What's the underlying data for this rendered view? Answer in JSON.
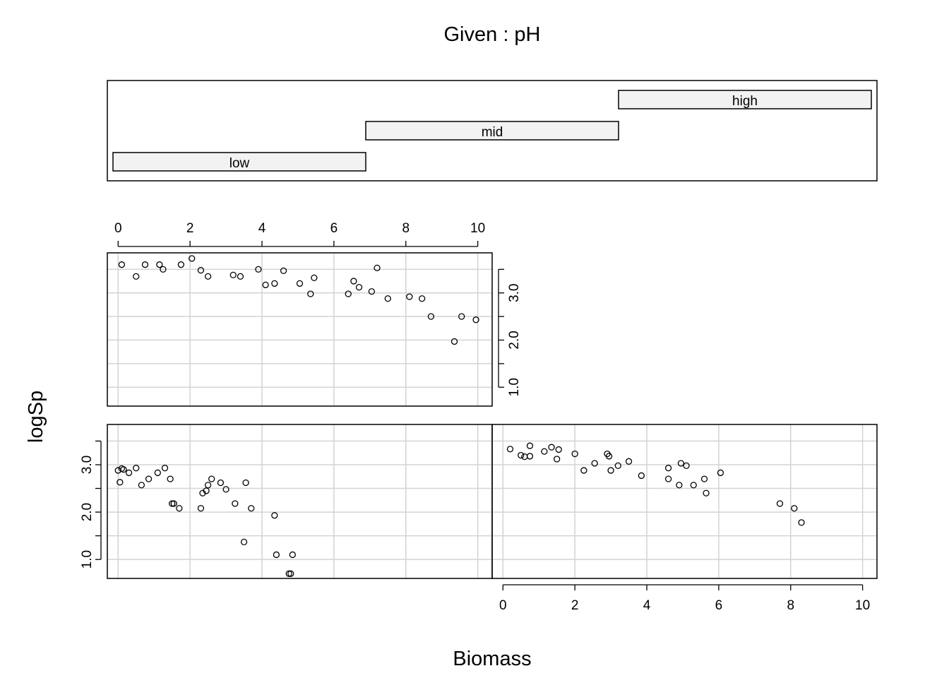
{
  "chart_data": {
    "type": "scatter",
    "title": "Given : pH",
    "xlabel": "Biomass",
    "ylabel": "logSp",
    "xlim": [
      -0.3,
      10.4
    ],
    "ylim": [
      0.6,
      3.85
    ],
    "x_ticks": [
      0,
      2,
      4,
      6,
      8,
      10
    ],
    "y_ticks": [
      1.0,
      1.5,
      2.0,
      2.5,
      3.0,
      3.5
    ],
    "y_tick_labels": [
      "1.0",
      "2.0",
      "3.0"
    ],
    "grid": true,
    "given": {
      "name": "pH",
      "levels": [
        {
          "label": "low",
          "range": [
            0,
            1
          ]
        },
        {
          "label": "mid",
          "range": [
            1,
            2
          ]
        },
        {
          "label": "high",
          "range": [
            2,
            3
          ]
        }
      ]
    },
    "panels": [
      {
        "level": "low",
        "points": [
          [
            0.0,
            2.88
          ],
          [
            0.05,
            2.63
          ],
          [
            0.1,
            2.92
          ],
          [
            0.15,
            2.9
          ],
          [
            0.3,
            2.83
          ],
          [
            0.5,
            2.93
          ],
          [
            0.65,
            2.57
          ],
          [
            0.85,
            2.7
          ],
          [
            1.1,
            2.83
          ],
          [
            1.3,
            2.93
          ],
          [
            1.45,
            2.7
          ],
          [
            1.5,
            2.18
          ],
          [
            1.55,
            2.18
          ],
          [
            1.7,
            2.08
          ],
          [
            2.3,
            2.08
          ],
          [
            2.35,
            2.4
          ],
          [
            2.45,
            2.45
          ],
          [
            2.5,
            2.57
          ],
          [
            2.6,
            2.7
          ],
          [
            2.85,
            2.62
          ],
          [
            3.0,
            2.48
          ],
          [
            3.25,
            2.18
          ],
          [
            3.5,
            1.37
          ],
          [
            3.55,
            2.62
          ],
          [
            3.7,
            2.08
          ],
          [
            4.35,
            1.93
          ],
          [
            4.4,
            1.1
          ],
          [
            4.75,
            0.7
          ],
          [
            4.8,
            0.7
          ],
          [
            4.85,
            1.1
          ]
        ]
      },
      {
        "level": "mid",
        "points": [
          [
            0.1,
            3.6
          ],
          [
            0.5,
            3.35
          ],
          [
            0.75,
            3.6
          ],
          [
            1.15,
            3.6
          ],
          [
            1.25,
            3.5
          ],
          [
            1.75,
            3.6
          ],
          [
            2.05,
            3.73
          ],
          [
            2.3,
            3.48
          ],
          [
            2.5,
            3.35
          ],
          [
            3.2,
            3.38
          ],
          [
            3.4,
            3.35
          ],
          [
            3.9,
            3.5
          ],
          [
            4.1,
            3.17
          ],
          [
            4.35,
            3.2
          ],
          [
            4.6,
            3.47
          ],
          [
            5.05,
            3.2
          ],
          [
            5.35,
            2.98
          ],
          [
            5.45,
            3.32
          ],
          [
            6.4,
            2.98
          ],
          [
            6.55,
            3.25
          ],
          [
            6.7,
            3.12
          ],
          [
            7.05,
            3.03
          ],
          [
            7.2,
            3.53
          ],
          [
            7.5,
            2.88
          ],
          [
            8.1,
            2.92
          ],
          [
            8.45,
            2.88
          ],
          [
            8.7,
            2.5
          ],
          [
            9.35,
            1.97
          ],
          [
            9.55,
            2.5
          ],
          [
            9.95,
            2.43
          ]
        ]
      },
      {
        "level": "high",
        "points": [
          [
            0.2,
            3.33
          ],
          [
            0.5,
            3.2
          ],
          [
            0.6,
            3.17
          ],
          [
            0.75,
            3.4
          ],
          [
            0.75,
            3.18
          ],
          [
            1.15,
            3.28
          ],
          [
            1.35,
            3.37
          ],
          [
            1.5,
            3.12
          ],
          [
            1.55,
            3.32
          ],
          [
            2.0,
            3.23
          ],
          [
            2.25,
            2.88
          ],
          [
            2.55,
            3.03
          ],
          [
            2.9,
            3.23
          ],
          [
            2.95,
            3.18
          ],
          [
            3.0,
            2.88
          ],
          [
            3.2,
            2.98
          ],
          [
            3.5,
            3.07
          ],
          [
            3.85,
            2.77
          ],
          [
            4.6,
            2.93
          ],
          [
            4.6,
            2.7
          ],
          [
            4.9,
            2.57
          ],
          [
            4.95,
            3.03
          ],
          [
            5.1,
            2.98
          ],
          [
            5.3,
            2.57
          ],
          [
            5.6,
            2.7
          ],
          [
            5.65,
            2.4
          ],
          [
            6.05,
            2.83
          ],
          [
            7.7,
            2.18
          ],
          [
            8.1,
            2.08
          ],
          [
            8.3,
            1.78
          ]
        ]
      }
    ]
  }
}
